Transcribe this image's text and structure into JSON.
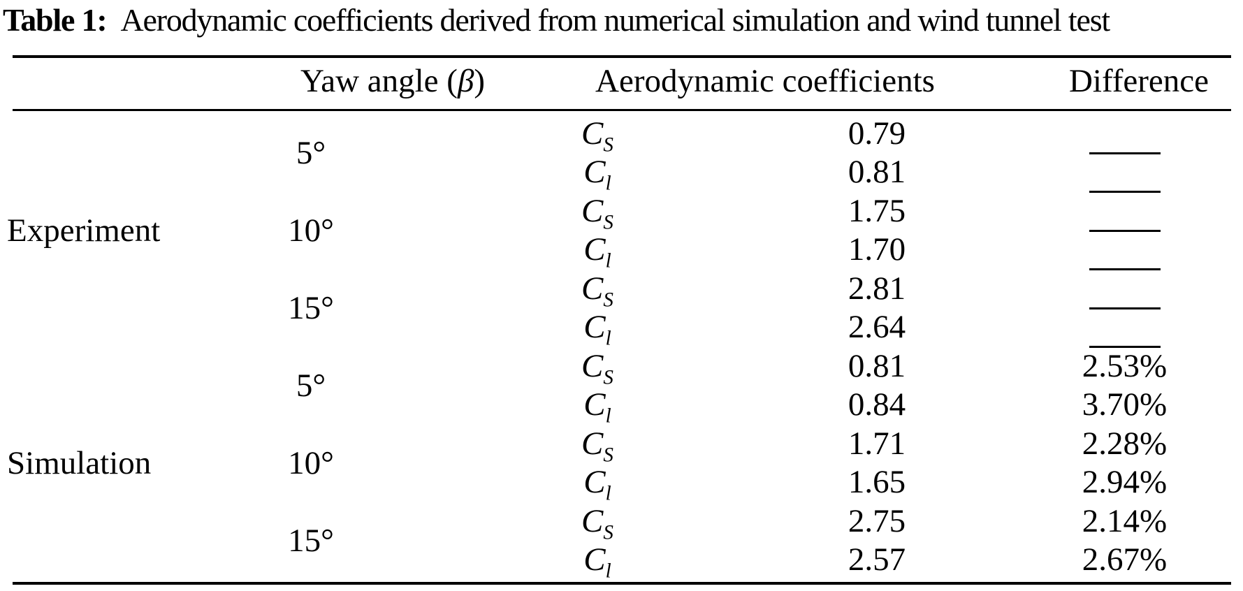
{
  "colors": {
    "background": "#ffffff",
    "text": "#000000",
    "rule": "#000000"
  },
  "caption": {
    "label": "Table 1:",
    "text": "Aerodynamic coefficients derived from numerical simulation and wind tunnel test"
  },
  "columns": {
    "yaw_prefix": "Yaw angle (",
    "yaw_symbol": "β",
    "yaw_suffix": ")",
    "coefficients": "Aerodynamic coefficients",
    "difference": "Difference"
  },
  "groups": [
    "Experiment",
    "Simulation"
  ],
  "yaw_angles": [
    "5°",
    "10°",
    "15°",
    "5°",
    "10°",
    "15°"
  ],
  "rows": [
    {
      "coef": "C",
      "sub": "S",
      "value": "0.79",
      "diff": ""
    },
    {
      "coef": "C",
      "sub": "l",
      "value": "0.81",
      "diff": ""
    },
    {
      "coef": "C",
      "sub": "S",
      "value": "1.75",
      "diff": ""
    },
    {
      "coef": "C",
      "sub": "l",
      "value": "1.70",
      "diff": ""
    },
    {
      "coef": "C",
      "sub": "S",
      "value": "2.81",
      "diff": ""
    },
    {
      "coef": "C",
      "sub": "l",
      "value": "2.64",
      "diff": ""
    },
    {
      "coef": "C",
      "sub": "S",
      "value": "0.81",
      "diff": "2.53%"
    },
    {
      "coef": "C",
      "sub": "l",
      "value": "0.84",
      "diff": "3.70%"
    },
    {
      "coef": "C",
      "sub": "S",
      "value": "1.71",
      "diff": "2.28%"
    },
    {
      "coef": "C",
      "sub": "l",
      "value": "1.65",
      "diff": "2.94%"
    },
    {
      "coef": "C",
      "sub": "S",
      "value": "2.75",
      "diff": "2.14%"
    },
    {
      "coef": "C",
      "sub": "l",
      "value": "2.57",
      "diff": "2.67%"
    }
  ]
}
